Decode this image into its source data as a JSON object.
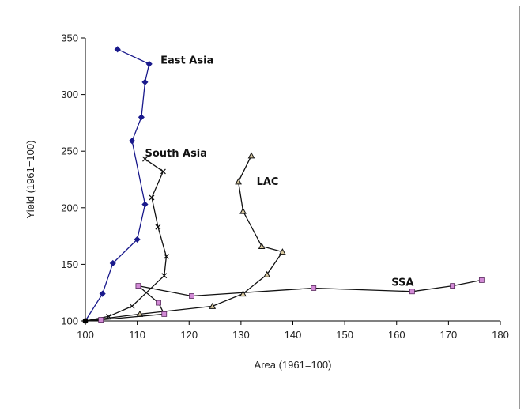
{
  "chart_data": {
    "type": "line",
    "title": "",
    "xlabel": "Area (1961=100)",
    "ylabel": "Yield (1961=100)",
    "xlim": [
      100,
      180
    ],
    "ylim": [
      100,
      350
    ],
    "x_ticks": [
      100,
      110,
      120,
      130,
      140,
      150,
      160,
      170,
      180
    ],
    "y_ticks": [
      100,
      150,
      200,
      250,
      300,
      350
    ],
    "grid": false,
    "legend": "none",
    "series": [
      {
        "name": "East Asia",
        "color": "#1a1a8c",
        "marker": "diamond",
        "label_at": [
          114.5,
          330
        ],
        "points": [
          [
            100,
            100
          ],
          [
            103.3,
            124
          ],
          [
            105.3,
            151
          ],
          [
            110,
            172
          ],
          [
            111.5,
            203
          ],
          [
            109,
            259
          ],
          [
            110.8,
            280
          ],
          [
            111.5,
            311
          ],
          [
            112.3,
            327
          ],
          [
            106.2,
            340
          ]
        ]
      },
      {
        "name": "South Asia",
        "color": "#111111",
        "marker": "x",
        "label_at": [
          111.5,
          248
        ],
        "points": [
          [
            100,
            100
          ],
          [
            104.5,
            104
          ],
          [
            109,
            113
          ],
          [
            115.2,
            140
          ],
          [
            115.6,
            157
          ],
          [
            114,
            183
          ],
          [
            112.8,
            209
          ],
          [
            115,
            232
          ],
          [
            111.5,
            243
          ]
        ]
      },
      {
        "name": "LAC",
        "color": "#111111",
        "marker": "triangle",
        "label_at": [
          133,
          223
        ],
        "points": [
          [
            100,
            100
          ],
          [
            110.5,
            106
          ],
          [
            124.5,
            113
          ],
          [
            130.4,
            124
          ],
          [
            135,
            141
          ],
          [
            138,
            161
          ],
          [
            134,
            166
          ],
          [
            130.4,
            197
          ],
          [
            129.5,
            223
          ],
          [
            132,
            246
          ]
        ]
      },
      {
        "name": "SSA",
        "color": "#111111",
        "marker": "square",
        "label_at": [
          159,
          134
        ],
        "points": [
          [
            100,
            100
          ],
          [
            103,
            101
          ],
          [
            115.2,
            106
          ],
          [
            114.1,
            116
          ],
          [
            110.2,
            131
          ],
          [
            120.5,
            122
          ],
          [
            144,
            129
          ],
          [
            163,
            126
          ],
          [
            170.8,
            131
          ],
          [
            176.4,
            136
          ]
        ]
      }
    ]
  }
}
